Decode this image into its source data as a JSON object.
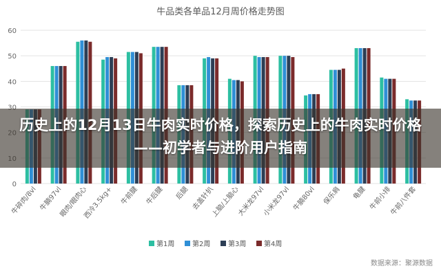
{
  "headline": "历史上的12月13日牛肉实时价格，探索历史上的牛肉实时价格——初学者与进阶用户指南",
  "footer_credit": "数据来源：聚源数据",
  "colors": {
    "series": [
      "#2dbfa2",
      "#2f8fd6",
      "#2c3e55",
      "#7b2b2b"
    ],
    "grid": "#e3e3e3",
    "banner": "#3a342c"
  },
  "chart_data": {
    "type": "bar",
    "title": "牛品类各单品12月周价格走势图",
    "xlabel": "",
    "ylabel": "",
    "ylim": [
      0,
      60
    ],
    "yticks": [
      0,
      10,
      20,
      30,
      40,
      50,
      60
    ],
    "grid": true,
    "legend_position": "bottom",
    "categories": [
      "牛碎肉/8vl",
      "牛腩97vl",
      "眼肉/眼肉心",
      "西冷3.5kg+",
      "牛前腱",
      "牛后腱",
      "后腿",
      "去盖针扒",
      "上脑/上脑心",
      "大米龙97vl",
      "小米龙97vl",
      "牛腩80vl",
      "保乐肩",
      "龟腱",
      "牛前小排",
      "牛前八件套"
    ],
    "series": [
      {
        "name": "第1周",
        "values": [
          29,
          46,
          55.5,
          48.5,
          51.5,
          53.5,
          38.5,
          49,
          41,
          50,
          50,
          34.5,
          44.5,
          53,
          41.5,
          33
        ]
      },
      {
        "name": "第2周",
        "values": [
          29,
          46,
          56,
          49.5,
          51.5,
          53.5,
          38.5,
          49.5,
          40.5,
          49.5,
          50,
          35,
          44.5,
          53,
          41,
          32.5
        ]
      },
      {
        "name": "第3周",
        "values": [
          29,
          46,
          56,
          49.5,
          51.5,
          53.5,
          38.5,
          49,
          40.5,
          49.5,
          50,
          35,
          44.5,
          53,
          41,
          32.5
        ]
      },
      {
        "name": "第4周",
        "values": [
          29,
          46,
          55.5,
          49,
          51,
          53.5,
          38.5,
          49,
          40,
          49.5,
          49.5,
          35,
          45,
          53,
          41,
          32.5
        ]
      }
    ]
  }
}
